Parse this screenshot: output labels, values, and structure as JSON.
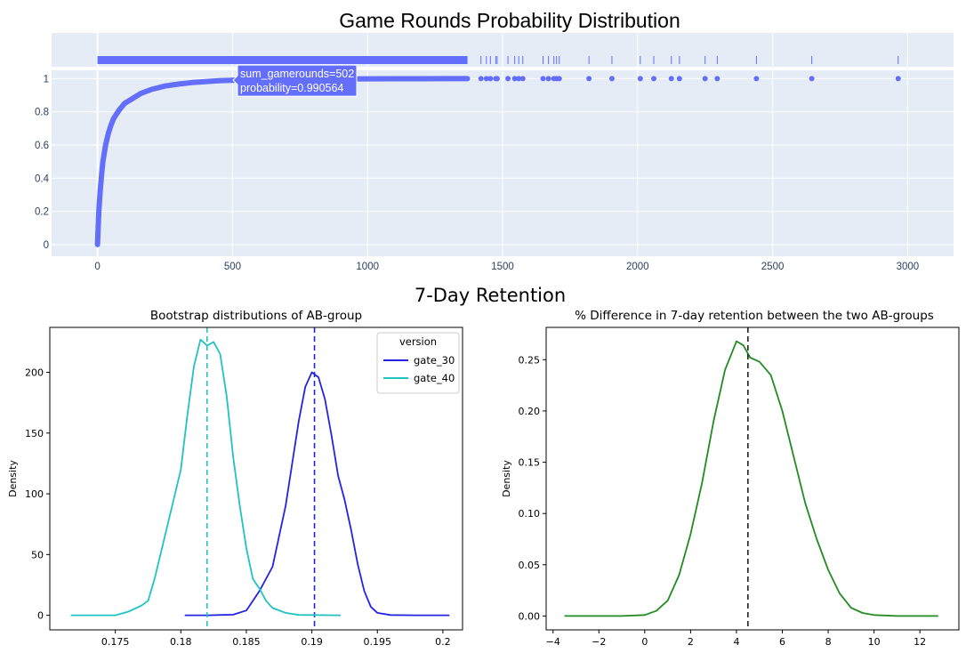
{
  "chart_data": [
    {
      "type": "scatter",
      "title": "Game Rounds Probability Distribution",
      "x_ticks": [
        0,
        500,
        1000,
        1500,
        2000,
        2500,
        3000
      ],
      "y_ticks": [
        0,
        0.2,
        0.4,
        0.6,
        0.8,
        1
      ],
      "xlim": [
        -170,
        3170
      ],
      "ylim": [
        -0.07,
        1.05
      ],
      "marker_color": "#636efa",
      "series": [
        {
          "points": [
            [
              0,
              0
            ],
            [
              2,
              0.08
            ],
            [
              5,
              0.2
            ],
            [
              10,
              0.32
            ],
            [
              15,
              0.42
            ],
            [
              20,
              0.5
            ],
            [
              30,
              0.6
            ],
            [
              40,
              0.67
            ],
            [
              50,
              0.72
            ],
            [
              60,
              0.76
            ],
            [
              80,
              0.81
            ],
            [
              100,
              0.85
            ],
            [
              130,
              0.88
            ],
            [
              160,
              0.91
            ],
            [
              200,
              0.935
            ],
            [
              250,
              0.955
            ],
            [
              300,
              0.967
            ],
            [
              350,
              0.976
            ],
            [
              400,
              0.982
            ],
            [
              450,
              0.987
            ],
            [
              502,
              0.990564
            ],
            [
              600,
              0.994
            ],
            [
              700,
              0.996
            ],
            [
              800,
              0.997
            ],
            [
              900,
              0.998
            ],
            [
              1000,
              0.9985
            ],
            [
              1100,
              0.999
            ],
            [
              1200,
              0.9993
            ],
            [
              1300,
              0.9995
            ],
            [
              1370,
              0.9997
            ]
          ],
          "sparse_x": [
            1420,
            1440,
            1455,
            1475,
            1480,
            1520,
            1545,
            1560,
            1575,
            1650,
            1670,
            1690,
            1700,
            1710,
            1820,
            1905,
            2010,
            2060,
            2125,
            2155,
            2250,
            2295,
            2440,
            2645,
            2965
          ]
        }
      ],
      "tooltip": {
        "line1": "sum_gamerounds=502",
        "line2": "probability=0.990564",
        "x": 502,
        "y": 0.990564
      }
    },
    {
      "type": "line",
      "title": "Bootstrap distributions of AB-group",
      "section_title": "7-Day Retention",
      "ylabel": "Density",
      "x_ticks": [
        0.175,
        0.18,
        0.185,
        0.19,
        0.195,
        0.2
      ],
      "y_ticks": [
        0,
        50,
        100,
        150,
        200
      ],
      "xlim": [
        0.17,
        0.2015
      ],
      "ylim": [
        -12,
        237
      ],
      "legend": {
        "title": "version",
        "position": "top-right"
      },
      "series": [
        {
          "name": "gate_30",
          "color": "#2323e6",
          "mean": 0.1902,
          "points": [
            [
              0.1803,
              0
            ],
            [
              0.182,
              0
            ],
            [
              0.184,
              0.5
            ],
            [
              0.185,
              4
            ],
            [
              0.186,
              20
            ],
            [
              0.187,
              40
            ],
            [
              0.188,
              90
            ],
            [
              0.1885,
              125
            ],
            [
              0.189,
              160
            ],
            [
              0.1895,
              188
            ],
            [
              0.19,
              200
            ],
            [
              0.1905,
              196
            ],
            [
              0.191,
              178
            ],
            [
              0.1915,
              148
            ],
            [
              0.192,
              115
            ],
            [
              0.1925,
              95
            ],
            [
              0.193,
              70
            ],
            [
              0.1935,
              42
            ],
            [
              0.194,
              20
            ],
            [
              0.1945,
              7
            ],
            [
              0.195,
              2
            ],
            [
              0.196,
              0.2
            ],
            [
              0.198,
              0
            ],
            [
              0.2005,
              0
            ]
          ]
        },
        {
          "name": "gate_40",
          "color": "#20c2c2",
          "mean": 0.182,
          "points": [
            [
              0.1716,
              0
            ],
            [
              0.175,
              0
            ],
            [
              0.176,
              3
            ],
            [
              0.177,
              8
            ],
            [
              0.1775,
              12
            ],
            [
              0.178,
              30
            ],
            [
              0.179,
              75
            ],
            [
              0.18,
              120
            ],
            [
              0.1805,
              165
            ],
            [
              0.181,
              205
            ],
            [
              0.1815,
              227
            ],
            [
              0.182,
              222
            ],
            [
              0.1825,
              225
            ],
            [
              0.183,
              215
            ],
            [
              0.1835,
              180
            ],
            [
              0.184,
              130
            ],
            [
              0.1845,
              90
            ],
            [
              0.185,
              55
            ],
            [
              0.1855,
              30
            ],
            [
              0.186,
              22
            ],
            [
              0.1865,
              12
            ],
            [
              0.187,
              6
            ],
            [
              0.188,
              2
            ],
            [
              0.189,
              0.3
            ],
            [
              0.1922,
              0
            ]
          ]
        }
      ]
    },
    {
      "type": "line",
      "title": "% Difference in 7-day retention between the two AB-groups",
      "ylabel": "Density",
      "x_ticks": [
        -4,
        -2,
        0,
        2,
        4,
        6,
        8,
        10,
        12
      ],
      "y_ticks": [
        "0.00",
        "0.05",
        "0.10",
        "0.15",
        "0.20",
        "0.25"
      ],
      "xlim": [
        -4.3,
        13.7
      ],
      "ylim": [
        -0.0135,
        0.2815
      ],
      "series": [
        {
          "name": "",
          "color": "#228b22",
          "mean": 4.5,
          "points": [
            [
              -3.5,
              0
            ],
            [
              -1,
              0
            ],
            [
              0,
              0.001
            ],
            [
              0.5,
              0.005
            ],
            [
              1,
              0.015
            ],
            [
              1.5,
              0.04
            ],
            [
              2,
              0.08
            ],
            [
              2.5,
              0.13
            ],
            [
              3,
              0.19
            ],
            [
              3.5,
              0.24
            ],
            [
              4,
              0.268
            ],
            [
              4.3,
              0.264
            ],
            [
              4.6,
              0.252
            ],
            [
              5,
              0.248
            ],
            [
              5.5,
              0.235
            ],
            [
              6,
              0.2
            ],
            [
              6.5,
              0.155
            ],
            [
              7,
              0.11
            ],
            [
              7.5,
              0.075
            ],
            [
              8,
              0.045
            ],
            [
              8.5,
              0.022
            ],
            [
              9,
              0.008
            ],
            [
              9.5,
              0.003
            ],
            [
              10,
              0.001
            ],
            [
              11,
              0
            ],
            [
              12.8,
              0
            ]
          ]
        }
      ]
    }
  ]
}
